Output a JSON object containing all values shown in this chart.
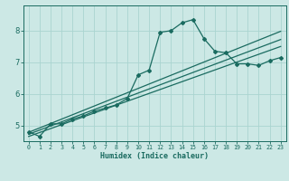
{
  "xlabel": "Humidex (Indice chaleur)",
  "ylabel": "",
  "bg_color": "#cce8e5",
  "grid_color": "#aad4d0",
  "line_color": "#1a6b60",
  "spine_color": "#1a6b60",
  "xlim": [
    -0.5,
    23.5
  ],
  "ylim": [
    4.5,
    8.8
  ],
  "xticks": [
    0,
    1,
    2,
    3,
    4,
    5,
    6,
    7,
    8,
    9,
    10,
    11,
    12,
    13,
    14,
    15,
    16,
    17,
    18,
    19,
    20,
    21,
    22,
    23
  ],
  "yticks": [
    5,
    6,
    7,
    8
  ],
  "line1_x": [
    0,
    1,
    2,
    3,
    4,
    5,
    6,
    7,
    8,
    9,
    10,
    11,
    12,
    13,
    14,
    15,
    16,
    17,
    18,
    19,
    20,
    21,
    22,
    23
  ],
  "line1_y": [
    4.8,
    4.65,
    5.05,
    5.05,
    5.2,
    5.3,
    5.45,
    5.55,
    5.65,
    5.85,
    6.6,
    6.75,
    7.95,
    8.0,
    8.25,
    8.35,
    7.75,
    7.35,
    7.3,
    6.95,
    6.95,
    6.9,
    7.05,
    7.15
  ],
  "line2_x": [
    0,
    23
  ],
  "line2_y": [
    4.78,
    7.98
  ],
  "line3_x": [
    0,
    23
  ],
  "line3_y": [
    4.72,
    7.72
  ],
  "line4_x": [
    0,
    23
  ],
  "line4_y": [
    4.65,
    7.5
  ]
}
